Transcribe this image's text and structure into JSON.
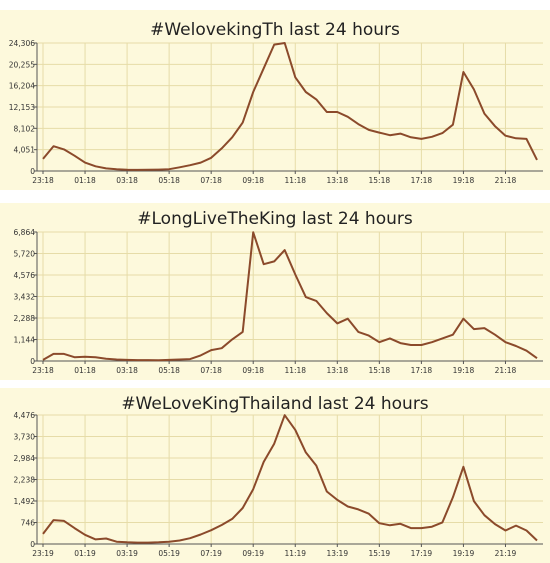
{
  "chart_data": [
    {
      "type": "line",
      "title": "#WelovekingTh last 24 hours",
      "y_ticks": [
        "0",
        "4,051",
        "8,102",
        "12,153",
        "16,204",
        "20,255",
        "24,306"
      ],
      "ylim": [
        0,
        24306
      ],
      "x_tick_labels": [
        "23:18",
        "01:18",
        "03:18",
        "05:18",
        "07:18",
        "09:18",
        "11:18",
        "13:18",
        "15:18",
        "17:18",
        "19:18",
        "21:18"
      ],
      "x_tick_index": [
        0,
        4,
        8,
        12,
        16,
        20,
        24,
        28,
        32,
        36,
        40,
        44
      ],
      "grid": true,
      "colors": {
        "line": "#8b4a2b",
        "grid": "#e6dca8",
        "bg": "#fdf9dc",
        "axis": "#555555"
      },
      "series": [
        {
          "values": [
            2300,
            4700,
            4100,
            2900,
            1600,
            900,
            500,
            350,
            250,
            200,
            220,
            260,
            350,
            700,
            1100,
            1600,
            2500,
            4300,
            6400,
            9200,
            15000,
            19500,
            24000,
            24300,
            17800,
            15000,
            13600,
            11200,
            11200,
            10300,
            8900,
            7800,
            7300,
            6800,
            7100,
            6400,
            6100,
            6500,
            7200,
            8800,
            18800,
            15500,
            10900,
            8500,
            6700,
            6200,
            6100,
            2100
          ]
        }
      ]
    },
    {
      "type": "line",
      "title": "#LongLiveTheKing last 24 hours",
      "y_ticks": [
        "0",
        "1,144",
        "2,288",
        "3,432",
        "4,576",
        "5,720",
        "6,864"
      ],
      "ylim": [
        0,
        6864
      ],
      "x_tick_labels": [
        "23:18",
        "01:18",
        "03:18",
        "05:18",
        "07:18",
        "09:18",
        "11:18",
        "13:18",
        "15:18",
        "17:18",
        "19:18",
        "21:18"
      ],
      "x_tick_index": [
        0,
        4,
        8,
        12,
        16,
        20,
        24,
        28,
        32,
        36,
        40,
        44
      ],
      "grid": true,
      "colors": {
        "line": "#8b4a2b",
        "grid": "#e6dca8",
        "bg": "#fdf9dc",
        "axis": "#555555"
      },
      "series": [
        {
          "values": [
            60,
            380,
            380,
            200,
            230,
            200,
            120,
            80,
            60,
            50,
            50,
            40,
            60,
            80,
            100,
            300,
            580,
            680,
            1150,
            1550,
            6850,
            5150,
            5300,
            5900,
            4600,
            3400,
            3200,
            2550,
            2000,
            2250,
            1550,
            1350,
            1000,
            1200,
            950,
            850,
            850,
            1000,
            1200,
            1400,
            2250,
            1700,
            1750,
            1400,
            1000,
            800,
            550,
            150
          ]
        }
      ]
    },
    {
      "type": "line",
      "title": "#WeLoveKingThailand last 24 hours",
      "y_ticks": [
        "0",
        "746",
        "1,492",
        "2,238",
        "2,984",
        "3,730",
        "4,476"
      ],
      "ylim": [
        0,
        4476
      ],
      "x_tick_labels": [
        "23:19",
        "01:19",
        "03:19",
        "05:19",
        "07:19",
        "09:19",
        "11:19",
        "13:19",
        "15:19",
        "17:19",
        "19:19",
        "21:19"
      ],
      "x_tick_index": [
        0,
        4,
        8,
        12,
        16,
        20,
        24,
        28,
        32,
        36,
        40,
        44
      ],
      "grid": true,
      "colors": {
        "line": "#8b4a2b",
        "grid": "#e6dca8",
        "bg": "#fdf9dc",
        "axis": "#555555"
      },
      "series": [
        {
          "values": [
            350,
            830,
            800,
            550,
            320,
            160,
            190,
            80,
            60,
            50,
            50,
            60,
            80,
            120,
            200,
            330,
            480,
            660,
            870,
            1250,
            1900,
            2850,
            3480,
            4470,
            3960,
            3180,
            2720,
            1820,
            1530,
            1300,
            1200,
            1050,
            720,
            650,
            700,
            550,
            550,
            600,
            750,
            1620,
            2680,
            1490,
            1000,
            690,
            470,
            640,
            470,
            120
          ]
        }
      ]
    }
  ]
}
